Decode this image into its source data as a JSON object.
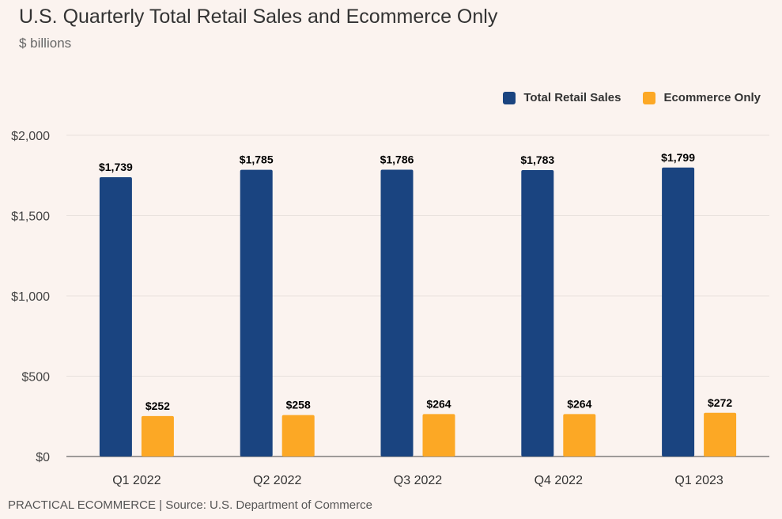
{
  "header": {
    "title": "U.S. Quarterly Total Retail Sales and Ecommerce Only",
    "subtitle": "$ billions"
  },
  "footer": {
    "text": "PRACTICAL ECOMMERCE | Source: U.S. Department of Commerce"
  },
  "colors": {
    "total": "#1a4480",
    "ecommerce": "#fca825",
    "grid": "#e8e1dd",
    "axis": "#666666"
  },
  "chart_data": {
    "type": "bar",
    "title": "U.S. Quarterly Total Retail Sales and Ecommerce Only",
    "subtitle": "$ billions",
    "xlabel": "",
    "ylabel": "",
    "ylim": [
      0,
      2000
    ],
    "yticks": [
      0,
      500,
      1000,
      1500,
      2000
    ],
    "ytick_labels": [
      "$0",
      "$500",
      "$1,000",
      "$1,500",
      "$2,000"
    ],
    "grid": true,
    "legend_position": "top-right",
    "categories": [
      "Q1 2022",
      "Q2 2022",
      "Q3 2022",
      "Q4 2022",
      "Q1 2023"
    ],
    "series": [
      {
        "name": "Total Retail Sales",
        "color_key": "total",
        "values": [
          1739,
          1785,
          1786,
          1783,
          1799
        ],
        "labels": [
          "$1,739",
          "$1,785",
          "$1,786",
          "$1,783",
          "$1,799"
        ]
      },
      {
        "name": "Ecommerce Only",
        "color_key": "ecommerce",
        "values": [
          252,
          258,
          264,
          264,
          272
        ],
        "labels": [
          "$252",
          "$258",
          "$264",
          "$264",
          "$272"
        ]
      }
    ]
  }
}
